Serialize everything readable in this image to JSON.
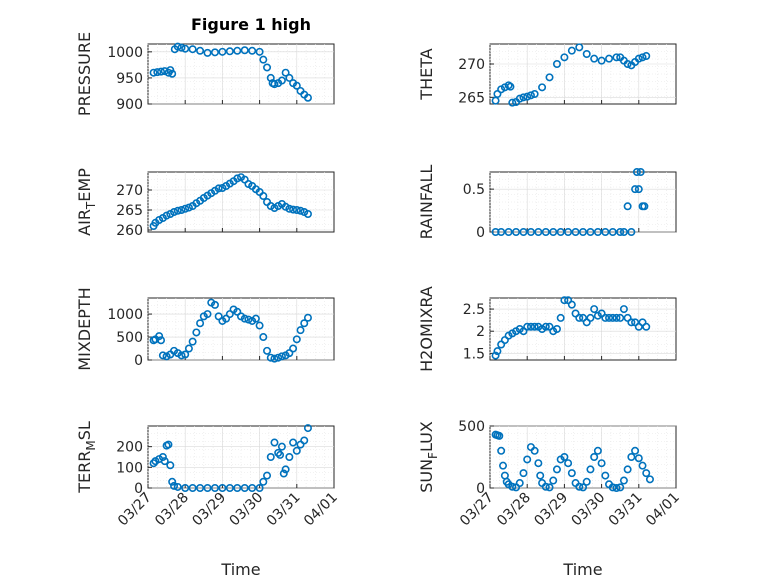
{
  "figure": {
    "title": "Figure 1 high",
    "marker_color": "#0072bd",
    "grid": true
  },
  "time_ticks": [
    "03/27",
    "03/28",
    "03/29",
    "03/30",
    "03/31",
    "04/01"
  ],
  "chart_data": [
    {
      "type": "scatter",
      "id": "pressure",
      "title": "Figure 1 high",
      "ylabel": "PRESSURE",
      "xlim": [
        "03/27",
        "04/01"
      ],
      "ylim": [
        900,
        1015
      ],
      "yticks": [
        "900",
        "950",
        "1000"
      ],
      "ytick_values": [
        900,
        950,
        1000
      ],
      "show_xticklabels": false,
      "x": [
        0.15,
        0.25,
        0.35,
        0.45,
        0.55,
        0.6,
        0.65,
        0.72,
        0.8,
        0.9,
        1.0,
        1.2,
        1.4,
        1.6,
        1.8,
        2.0,
        2.2,
        2.4,
        2.6,
        2.8,
        3.0,
        3.1,
        3.2,
        3.3,
        3.35,
        3.4,
        3.5,
        3.6,
        3.7,
        3.8,
        3.9,
        4.0,
        4.1,
        4.2,
        4.3
      ],
      "y": [
        960,
        961,
        962,
        963,
        960,
        965,
        958,
        1005,
        1010,
        1008,
        1006,
        1005,
        1002,
        998,
        999,
        1000,
        1001,
        1002,
        1003,
        1002,
        1000,
        985,
        970,
        950,
        940,
        938,
        940,
        945,
        960,
        950,
        940,
        935,
        925,
        918,
        912
      ]
    },
    {
      "type": "scatter",
      "id": "theta",
      "ylabel": "THETA",
      "xlim": [
        "03/27",
        "04/01"
      ],
      "ylim": [
        264,
        273
      ],
      "yticks": [
        "265",
        "270"
      ],
      "ytick_values": [
        265,
        270
      ],
      "show_xticklabels": false,
      "x": [
        0.15,
        0.2,
        0.3,
        0.4,
        0.5,
        0.55,
        0.6,
        0.7,
        0.8,
        0.9,
        1.0,
        1.1,
        1.2,
        1.4,
        1.6,
        1.8,
        2.0,
        2.2,
        2.4,
        2.6,
        2.8,
        3.0,
        3.2,
        3.4,
        3.5,
        3.6,
        3.7,
        3.8,
        3.9,
        4.0,
        4.1,
        4.2
      ],
      "y": [
        264.5,
        265.5,
        266.2,
        266.5,
        266.8,
        266.6,
        264.2,
        264.3,
        264.8,
        265,
        265.1,
        265.3,
        265.5,
        266.5,
        268,
        270,
        271,
        272,
        272.5,
        271.5,
        270.8,
        270.5,
        270.8,
        271,
        271,
        270.5,
        270,
        269.8,
        270.3,
        270.8,
        271,
        271.2
      ]
    },
    {
      "type": "scatter",
      "id": "air_temp",
      "ylabel": "AIR_TEMP",
      "ylabel_parts": [
        "AIR",
        "T",
        "EMP"
      ],
      "xlim": [
        "03/27",
        "04/01"
      ],
      "ylim": [
        259.5,
        274.5
      ],
      "yticks": [
        "260",
        "265",
        "270"
      ],
      "ytick_values": [
        260,
        265,
        270
      ],
      "show_xticklabels": false,
      "x": [
        0.15,
        0.2,
        0.3,
        0.4,
        0.5,
        0.6,
        0.7,
        0.8,
        0.9,
        1.0,
        1.1,
        1.2,
        1.3,
        1.4,
        1.5,
        1.6,
        1.7,
        1.8,
        1.9,
        2.0,
        2.1,
        2.2,
        2.3,
        2.4,
        2.5,
        2.6,
        2.7,
        2.8,
        2.9,
        3.0,
        3.1,
        3.2,
        3.3,
        3.4,
        3.5,
        3.6,
        3.7,
        3.8,
        3.9,
        4.0,
        4.1,
        4.2,
        4.3
      ],
      "y": [
        261,
        261.8,
        262.5,
        263,
        263.6,
        264,
        264.5,
        264.8,
        265,
        265.3,
        265.6,
        266,
        266.7,
        267.3,
        268,
        268.6,
        269.2,
        269.8,
        270.4,
        270.5,
        271,
        271.6,
        272.2,
        272.9,
        273.2,
        272.6,
        271.5,
        271,
        270.2,
        269.5,
        268.5,
        267,
        266,
        265.5,
        266,
        266.5,
        265.8,
        265.3,
        265.1,
        265,
        264.8,
        264.5,
        264
      ]
    },
    {
      "type": "scatter",
      "id": "rainfall",
      "ylabel": "RAINFALL",
      "xlim": [
        "03/27",
        "04/01"
      ],
      "ylim": [
        0,
        0.7
      ],
      "yticks": [
        "0",
        "0.5"
      ],
      "ytick_values": [
        0,
        0.5
      ],
      "show_xticklabels": false,
      "x": [
        0.15,
        0.3,
        0.5,
        0.7,
        0.9,
        1.1,
        1.3,
        1.5,
        1.7,
        1.9,
        2.1,
        2.3,
        2.5,
        2.7,
        2.9,
        3.1,
        3.3,
        3.5,
        3.6,
        3.7,
        3.8,
        3.9,
        3.95,
        4.0,
        4.05,
        4.1,
        4.15
      ],
      "y": [
        0,
        0,
        0,
        0,
        0,
        0,
        0,
        0,
        0,
        0,
        0,
        0,
        0,
        0,
        0,
        0,
        0,
        0,
        0,
        0.3,
        0,
        0.5,
        0.7,
        0.5,
        0.7,
        0.3,
        0.3
      ]
    },
    {
      "type": "scatter",
      "id": "mixdepth",
      "ylabel": "MIXDEPTH",
      "xlim": [
        "03/27",
        "04/01"
      ],
      "ylim": [
        0,
        1350
      ],
      "yticks": [
        "0",
        "500",
        "1000"
      ],
      "ytick_values": [
        0,
        500,
        1000
      ],
      "show_xticklabels": false,
      "x": [
        0.15,
        0.2,
        0.3,
        0.35,
        0.4,
        0.5,
        0.6,
        0.7,
        0.8,
        0.9,
        1.0,
        1.1,
        1.2,
        1.3,
        1.4,
        1.5,
        1.6,
        1.7,
        1.8,
        1.9,
        2.0,
        2.1,
        2.2,
        2.3,
        2.4,
        2.5,
        2.6,
        2.7,
        2.8,
        2.9,
        3.0,
        3.1,
        3.2,
        3.3,
        3.4,
        3.5,
        3.6,
        3.7,
        3.8,
        3.9,
        4.0,
        4.1,
        4.2,
        4.3
      ],
      "y": [
        430,
        450,
        520,
        430,
        100,
        80,
        120,
        200,
        150,
        100,
        120,
        250,
        400,
        600,
        800,
        950,
        1000,
        1250,
        1200,
        950,
        850,
        900,
        1000,
        1100,
        1050,
        950,
        900,
        880,
        850,
        900,
        750,
        500,
        200,
        50,
        30,
        50,
        80,
        100,
        150,
        250,
        450,
        650,
        800,
        920
      ]
    },
    {
      "type": "scatter",
      "id": "h2omixra",
      "ylabel": "H2OMIXRA",
      "xlim": [
        "03/27",
        "04/01"
      ],
      "ylim": [
        1.35,
        2.75
      ],
      "yticks": [
        "1.5",
        "2",
        "2.5"
      ],
      "ytick_values": [
        1.5,
        2.0,
        2.5
      ],
      "show_xticklabels": false,
      "x": [
        0.15,
        0.2,
        0.3,
        0.4,
        0.5,
        0.6,
        0.7,
        0.8,
        0.9,
        1.0,
        1.1,
        1.2,
        1.3,
        1.4,
        1.5,
        1.6,
        1.7,
        1.8,
        1.9,
        2.0,
        2.1,
        2.2,
        2.3,
        2.4,
        2.5,
        2.6,
        2.7,
        2.8,
        2.9,
        3.0,
        3.1,
        3.2,
        3.3,
        3.4,
        3.5,
        3.6,
        3.7,
        3.8,
        3.9,
        4.0,
        4.1,
        4.2
      ],
      "y": [
        1.45,
        1.55,
        1.7,
        1.8,
        1.9,
        1.95,
        2.0,
        2.05,
        2.0,
        2.1,
        2.1,
        2.1,
        2.1,
        2.05,
        2.1,
        2.1,
        2.0,
        2.05,
        2.3,
        2.7,
        2.7,
        2.6,
        2.4,
        2.3,
        2.3,
        2.2,
        2.3,
        2.5,
        2.35,
        2.4,
        2.3,
        2.3,
        2.3,
        2.3,
        2.3,
        2.5,
        2.3,
        2.2,
        2.2,
        2.1,
        2.2,
        2.1
      ]
    },
    {
      "type": "scatter",
      "id": "terr_msl",
      "ylabel": "TERR_MSL",
      "ylabel_parts": [
        "TERR",
        "M",
        "SL"
      ],
      "xlim": [
        "03/27",
        "04/01"
      ],
      "ylim": [
        0,
        300
      ],
      "yticks": [
        "0",
        "100",
        "200"
      ],
      "ytick_values": [
        0,
        100,
        200
      ],
      "show_xticklabels": true,
      "xlabel": "Time",
      "x": [
        0.15,
        0.2,
        0.3,
        0.4,
        0.45,
        0.5,
        0.55,
        0.6,
        0.65,
        0.7,
        0.8,
        1.0,
        1.2,
        1.4,
        1.6,
        1.8,
        2.0,
        2.2,
        2.4,
        2.6,
        2.8,
        3.0,
        3.1,
        3.2,
        3.3,
        3.4,
        3.5,
        3.55,
        3.6,
        3.65,
        3.7,
        3.8,
        3.9,
        4.0,
        4.1,
        4.2,
        4.3
      ],
      "y": [
        120,
        130,
        140,
        150,
        130,
        205,
        210,
        110,
        30,
        10,
        5,
        0,
        0,
        0,
        0,
        0,
        0,
        0,
        0,
        0,
        0,
        0,
        30,
        60,
        150,
        220,
        170,
        160,
        200,
        70,
        90,
        150,
        220,
        180,
        210,
        230,
        290
      ]
    },
    {
      "type": "scatter",
      "id": "sun_flux",
      "ylabel": "SUN_FLUX",
      "ylabel_parts": [
        "SUN",
        "F",
        "LUX"
      ],
      "xlim": [
        "03/27",
        "04/01"
      ],
      "ylim": [
        0,
        500
      ],
      "yticks": [
        "0",
        "500"
      ],
      "ytick_values": [
        0,
        500
      ],
      "show_xticklabels": true,
      "xlabel": "Time",
      "x": [
        0.15,
        0.2,
        0.25,
        0.3,
        0.35,
        0.4,
        0.45,
        0.5,
        0.6,
        0.7,
        0.8,
        0.9,
        1.0,
        1.1,
        1.2,
        1.3,
        1.35,
        1.4,
        1.5,
        1.6,
        1.7,
        1.8,
        1.9,
        2.0,
        2.1,
        2.2,
        2.3,
        2.4,
        2.5,
        2.6,
        2.7,
        2.8,
        2.9,
        3.0,
        3.1,
        3.2,
        3.3,
        3.4,
        3.5,
        3.6,
        3.7,
        3.8,
        3.9,
        4.0,
        4.1,
        4.2,
        4.3
      ],
      "y": [
        430,
        425,
        420,
        300,
        180,
        100,
        50,
        30,
        10,
        5,
        40,
        120,
        230,
        330,
        300,
        200,
        100,
        40,
        10,
        5,
        60,
        150,
        230,
        250,
        200,
        120,
        40,
        10,
        5,
        50,
        150,
        250,
        300,
        200,
        100,
        30,
        5,
        0,
        5,
        60,
        150,
        250,
        300,
        240,
        180,
        120,
        70
      ]
    }
  ]
}
